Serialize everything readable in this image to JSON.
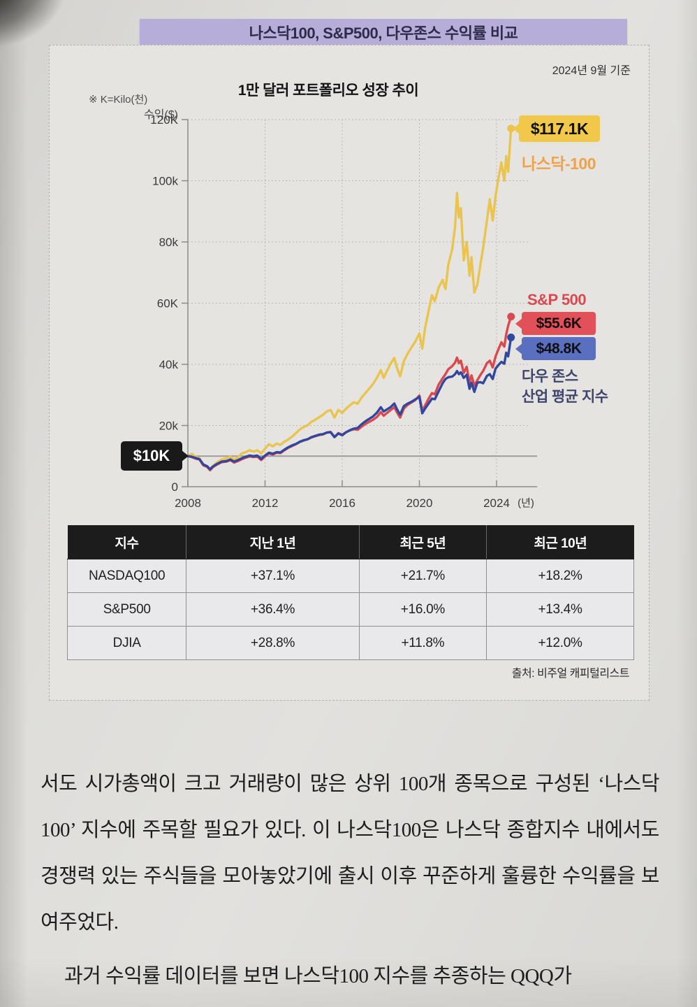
{
  "header": {
    "title": "나스닥100, S&P500, 다우존스 수익률 비교"
  },
  "chart": {
    "as_of": "2024년 9월 기준",
    "note": "※ K=Kilo(천)",
    "title": "1만 달러 포트폴리오 성장 추이",
    "y_axis_name": "수익($)",
    "x_axis_unit": "(년)",
    "start_label": "$10K",
    "source": "출처: 비주얼 캐피털리스트"
  },
  "chart_data": {
    "type": "line",
    "title": "1만 달러 포트폴리오 성장 추이",
    "ylabel": "수익($)",
    "xlabel": "(년)",
    "ylim": [
      0,
      120
    ],
    "xlim": [
      2008,
      2024.75
    ],
    "grid": true,
    "y_ticks": [
      {
        "v": 0,
        "label": "0"
      },
      {
        "v": 20,
        "label": "20k"
      },
      {
        "v": 40,
        "label": "40k"
      },
      {
        "v": 60,
        "label": "60K"
      },
      {
        "v": 80,
        "label": "80k"
      },
      {
        "v": 100,
        "label": "100k"
      },
      {
        "v": 120,
        "label": "120K"
      }
    ],
    "x_ticks": [
      2008,
      2012,
      2016,
      2020,
      2024
    ],
    "start_value": 10,
    "start_label": "$10K",
    "series": [
      {
        "name": "나스닥-100",
        "color": "#e9c44f",
        "label_color": "#f0a24a",
        "end_label": "$117.1K",
        "end_value": 117.1,
        "badge_bg": "#f2c84b",
        "points": [
          [
            2008,
            10
          ],
          [
            2008.2,
            10.8
          ],
          [
            2008.4,
            9.8
          ],
          [
            2008.6,
            9.3
          ],
          [
            2008.8,
            7.2
          ],
          [
            2009,
            6.4
          ],
          [
            2009.15,
            5.9
          ],
          [
            2009.3,
            6.8
          ],
          [
            2009.5,
            7.9
          ],
          [
            2009.75,
            8.9
          ],
          [
            2010,
            9.3
          ],
          [
            2010.2,
            9.8
          ],
          [
            2010.4,
            8.9
          ],
          [
            2010.6,
            9.6
          ],
          [
            2010.8,
            10.9
          ],
          [
            2011,
            11.3
          ],
          [
            2011.2,
            11.9
          ],
          [
            2011.4,
            11.5
          ],
          [
            2011.6,
            11.9
          ],
          [
            2011.8,
            10.9
          ],
          [
            2012,
            12.4
          ],
          [
            2012.2,
            13.9
          ],
          [
            2012.4,
            13.2
          ],
          [
            2012.6,
            14.1
          ],
          [
            2012.8,
            13.7
          ],
          [
            2013,
            14.7
          ],
          [
            2013.2,
            15.4
          ],
          [
            2013.4,
            16.4
          ],
          [
            2013.6,
            17.5
          ],
          [
            2013.8,
            18.7
          ],
          [
            2014,
            19.5
          ],
          [
            2014.2,
            20.1
          ],
          [
            2014.4,
            21.2
          ],
          [
            2014.6,
            21.9
          ],
          [
            2014.8,
            22.7
          ],
          [
            2015,
            23.5
          ],
          [
            2015.2,
            24.6
          ],
          [
            2015.4,
            25.1
          ],
          [
            2015.6,
            22.6
          ],
          [
            2015.8,
            25.1
          ],
          [
            2016,
            24.1
          ],
          [
            2016.2,
            25.5
          ],
          [
            2016.4,
            26.6
          ],
          [
            2016.6,
            27.6
          ],
          [
            2016.8,
            27.1
          ],
          [
            2017,
            29.1
          ],
          [
            2017.2,
            30.6
          ],
          [
            2017.4,
            32.1
          ],
          [
            2017.6,
            33.6
          ],
          [
            2017.8,
            35.6
          ],
          [
            2018,
            38.1
          ],
          [
            2018.15,
            35.6
          ],
          [
            2018.3,
            37.6
          ],
          [
            2018.5,
            40.1
          ],
          [
            2018.7,
            42.1
          ],
          [
            2018.85,
            38.6
          ],
          [
            2019,
            36.1
          ],
          [
            2019.2,
            41.1
          ],
          [
            2019.4,
            43.6
          ],
          [
            2019.6,
            45.6
          ],
          [
            2019.8,
            47.6
          ],
          [
            2020,
            50.1
          ],
          [
            2020.15,
            45.1
          ],
          [
            2020.3,
            52.1
          ],
          [
            2020.5,
            58.1
          ],
          [
            2020.65,
            62.6
          ],
          [
            2020.8,
            60.6
          ],
          [
            2021,
            65.1
          ],
          [
            2021.2,
            67.6
          ],
          [
            2021.35,
            64.6
          ],
          [
            2021.5,
            72.6
          ],
          [
            2021.7,
            77.6
          ],
          [
            2021.85,
            85.1
          ],
          [
            2021.95,
            96
          ],
          [
            2022.05,
            88
          ],
          [
            2022.15,
            91
          ],
          [
            2022.3,
            74
          ],
          [
            2022.45,
            80
          ],
          [
            2022.6,
            69
          ],
          [
            2022.7,
            75
          ],
          [
            2022.85,
            63.5
          ],
          [
            2023,
            66
          ],
          [
            2023.15,
            72
          ],
          [
            2023.3,
            78
          ],
          [
            2023.5,
            87
          ],
          [
            2023.65,
            94
          ],
          [
            2023.8,
            87
          ],
          [
            2023.95,
            95
          ],
          [
            2024.1,
            101
          ],
          [
            2024.25,
            106
          ],
          [
            2024.4,
            100
          ],
          [
            2024.5,
            108
          ],
          [
            2024.6,
            103
          ],
          [
            2024.75,
            117.1
          ]
        ]
      },
      {
        "name": "S&P 500",
        "color": "#d9494f",
        "label_color": "#d9494f",
        "end_label": "$55.6K",
        "end_value": 55.6,
        "badge_bg": "#e25059",
        "points": [
          [
            2008,
            10
          ],
          [
            2008.2,
            9.7
          ],
          [
            2008.4,
            9.2
          ],
          [
            2008.6,
            8.9
          ],
          [
            2008.8,
            7
          ],
          [
            2009,
            6.5
          ],
          [
            2009.15,
            5.4
          ],
          [
            2009.3,
            6.4
          ],
          [
            2009.5,
            7.2
          ],
          [
            2009.75,
            8
          ],
          [
            2010,
            8.2
          ],
          [
            2010.2,
            8.7
          ],
          [
            2010.4,
            7.9
          ],
          [
            2010.6,
            8.4
          ],
          [
            2010.8,
            9
          ],
          [
            2011,
            9.5
          ],
          [
            2011.2,
            9.9
          ],
          [
            2011.4,
            9.7
          ],
          [
            2011.6,
            9.9
          ],
          [
            2011.8,
            8.7
          ],
          [
            2012,
            9.9
          ],
          [
            2012.2,
            10.9
          ],
          [
            2012.4,
            10.5
          ],
          [
            2012.6,
            11.1
          ],
          [
            2012.8,
            11
          ],
          [
            2013,
            11.9
          ],
          [
            2013.2,
            12.7
          ],
          [
            2013.4,
            13.3
          ],
          [
            2013.6,
            13.9
          ],
          [
            2013.8,
            14.6
          ],
          [
            2014,
            15.1
          ],
          [
            2014.2,
            15.5
          ],
          [
            2014.4,
            16.1
          ],
          [
            2014.6,
            16.5
          ],
          [
            2014.8,
            16.9
          ],
          [
            2015,
            17.1
          ],
          [
            2015.2,
            17.7
          ],
          [
            2015.4,
            17.9
          ],
          [
            2015.6,
            16.3
          ],
          [
            2015.8,
            17.5
          ],
          [
            2016,
            17
          ],
          [
            2016.2,
            17.8
          ],
          [
            2016.4,
            18.4
          ],
          [
            2016.6,
            18.8
          ],
          [
            2016.8,
            18.6
          ],
          [
            2017,
            19.6
          ],
          [
            2017.2,
            20.5
          ],
          [
            2017.4,
            21.2
          ],
          [
            2017.6,
            21.9
          ],
          [
            2017.8,
            22.8
          ],
          [
            2018,
            24.4
          ],
          [
            2018.15,
            23.2
          ],
          [
            2018.3,
            24
          ],
          [
            2018.5,
            25
          ],
          [
            2018.7,
            26
          ],
          [
            2018.85,
            24.2
          ],
          [
            2019,
            22.6
          ],
          [
            2019.2,
            25.6
          ],
          [
            2019.4,
            26.8
          ],
          [
            2019.6,
            27.6
          ],
          [
            2019.8,
            28.4
          ],
          [
            2020,
            29.8
          ],
          [
            2020.15,
            24.8
          ],
          [
            2020.3,
            26.6
          ],
          [
            2020.5,
            29
          ],
          [
            2020.65,
            30.6
          ],
          [
            2020.8,
            30.2
          ],
          [
            2021,
            33.4
          ],
          [
            2021.2,
            35.4
          ],
          [
            2021.35,
            36.8
          ],
          [
            2021.5,
            38.4
          ],
          [
            2021.7,
            39.4
          ],
          [
            2021.85,
            40.6
          ],
          [
            2021.95,
            42.2
          ],
          [
            2022.05,
            40.4
          ],
          [
            2022.15,
            41.2
          ],
          [
            2022.3,
            37.2
          ],
          [
            2022.45,
            39.2
          ],
          [
            2022.6,
            34
          ],
          [
            2022.7,
            36.4
          ],
          [
            2022.85,
            33
          ],
          [
            2023,
            34.8
          ],
          [
            2023.15,
            36.4
          ],
          [
            2023.3,
            37.8
          ],
          [
            2023.5,
            40.4
          ],
          [
            2023.65,
            41.2
          ],
          [
            2023.8,
            39
          ],
          [
            2023.95,
            42.6
          ],
          [
            2024.1,
            45
          ],
          [
            2024.25,
            47.2
          ],
          [
            2024.4,
            45.8
          ],
          [
            2024.5,
            49.8
          ],
          [
            2024.6,
            52.6
          ],
          [
            2024.75,
            55.6
          ]
        ]
      },
      {
        "name": "다우 존스 산업 평균 지수",
        "label_lines": [
          "다우 존스",
          "산업 평균 지수"
        ],
        "color": "#31479f",
        "label_color": "#40466b",
        "end_label": "$48.8K",
        "end_value": 48.8,
        "badge_bg": "#5b6fc0",
        "points": [
          [
            2008,
            10
          ],
          [
            2008.2,
            9.8
          ],
          [
            2008.4,
            9.4
          ],
          [
            2008.6,
            9
          ],
          [
            2008.8,
            7.3
          ],
          [
            2009,
            6.7
          ],
          [
            2009.15,
            5.7
          ],
          [
            2009.3,
            6.6
          ],
          [
            2009.5,
            7.4
          ],
          [
            2009.75,
            8.2
          ],
          [
            2010,
            8.4
          ],
          [
            2010.2,
            8.9
          ],
          [
            2010.4,
            8.2
          ],
          [
            2010.6,
            8.7
          ],
          [
            2010.8,
            9.3
          ],
          [
            2011,
            9.8
          ],
          [
            2011.2,
            10.2
          ],
          [
            2011.4,
            10
          ],
          [
            2011.6,
            10.2
          ],
          [
            2011.8,
            9.1
          ],
          [
            2012,
            10.2
          ],
          [
            2012.2,
            11.1
          ],
          [
            2012.4,
            10.8
          ],
          [
            2012.6,
            11.3
          ],
          [
            2012.8,
            11.2
          ],
          [
            2013,
            12.1
          ],
          [
            2013.2,
            12.9
          ],
          [
            2013.4,
            13.5
          ],
          [
            2013.6,
            14
          ],
          [
            2013.8,
            14.7
          ],
          [
            2014,
            15.2
          ],
          [
            2014.2,
            15.5
          ],
          [
            2014.4,
            16.2
          ],
          [
            2014.6,
            16.6
          ],
          [
            2014.8,
            17
          ],
          [
            2015,
            17.2
          ],
          [
            2015.2,
            17.7
          ],
          [
            2015.4,
            17.8
          ],
          [
            2015.6,
            16.2
          ],
          [
            2015.8,
            17.4
          ],
          [
            2016,
            16.8
          ],
          [
            2016.2,
            17.8
          ],
          [
            2016.4,
            18.5
          ],
          [
            2016.6,
            19
          ],
          [
            2016.8,
            19.2
          ],
          [
            2017,
            20.4
          ],
          [
            2017.2,
            21.4
          ],
          [
            2017.4,
            22.2
          ],
          [
            2017.6,
            23
          ],
          [
            2017.8,
            24.2
          ],
          [
            2018,
            26
          ],
          [
            2018.15,
            24.6
          ],
          [
            2018.3,
            25.2
          ],
          [
            2018.5,
            26
          ],
          [
            2018.7,
            27.2
          ],
          [
            2018.85,
            25.2
          ],
          [
            2019,
            23.6
          ],
          [
            2019.2,
            26.4
          ],
          [
            2019.4,
            27.2
          ],
          [
            2019.6,
            27.8
          ],
          [
            2019.8,
            28.6
          ],
          [
            2020,
            29.4
          ],
          [
            2020.15,
            24
          ],
          [
            2020.3,
            25.6
          ],
          [
            2020.5,
            27.4
          ],
          [
            2020.65,
            28.8
          ],
          [
            2020.8,
            28.6
          ],
          [
            2021,
            31.2
          ],
          [
            2021.2,
            33.8
          ],
          [
            2021.35,
            35.2
          ],
          [
            2021.5,
            35.8
          ],
          [
            2021.7,
            36
          ],
          [
            2021.85,
            36.8
          ],
          [
            2021.95,
            37.8
          ],
          [
            2022.05,
            36.8
          ],
          [
            2022.15,
            37.4
          ],
          [
            2022.3,
            35.6
          ],
          [
            2022.45,
            36.6
          ],
          [
            2022.6,
            32
          ],
          [
            2022.7,
            34
          ],
          [
            2022.85,
            31
          ],
          [
            2023,
            34
          ],
          [
            2023.15,
            34.2
          ],
          [
            2023.3,
            33.8
          ],
          [
            2023.5,
            36.2
          ],
          [
            2023.65,
            36.8
          ],
          [
            2023.8,
            35.2
          ],
          [
            2023.95,
            38.6
          ],
          [
            2024.1,
            39.8
          ],
          [
            2024.25,
            40.8
          ],
          [
            2024.4,
            40.2
          ],
          [
            2024.5,
            43.8
          ],
          [
            2024.6,
            42.6
          ],
          [
            2024.75,
            48.8
          ]
        ]
      }
    ]
  },
  "table": {
    "headers": [
      "지수",
      "지난 1년",
      "최근 5년",
      "최근 10년"
    ],
    "rows": [
      [
        "NASDAQ100",
        "+37.1%",
        "+21.7%",
        "+18.2%"
      ],
      [
        "S&P500",
        "+36.4%",
        "+16.0%",
        "+13.4%"
      ],
      [
        "DJIA",
        "+28.8%",
        "+11.8%",
        "+12.0%"
      ]
    ]
  },
  "body": {
    "paragraph1": "서도 시가총액이 크고 거래량이 많은 상위 100개 종목으로 구성된 ‘나스닥100’ 지수에 주목할 필요가 있다. 이 나스닥100은 나스닥 종합지수 내에서도 경쟁력 있는 주식들을 모아놓았기에 출시 이후 꾸준하게 훌륭한 수익률을 보여주었다.",
    "paragraph2": "과거 수익률 데이터를 보면 나스닥100 지수를 추종하는 QQQ가"
  }
}
